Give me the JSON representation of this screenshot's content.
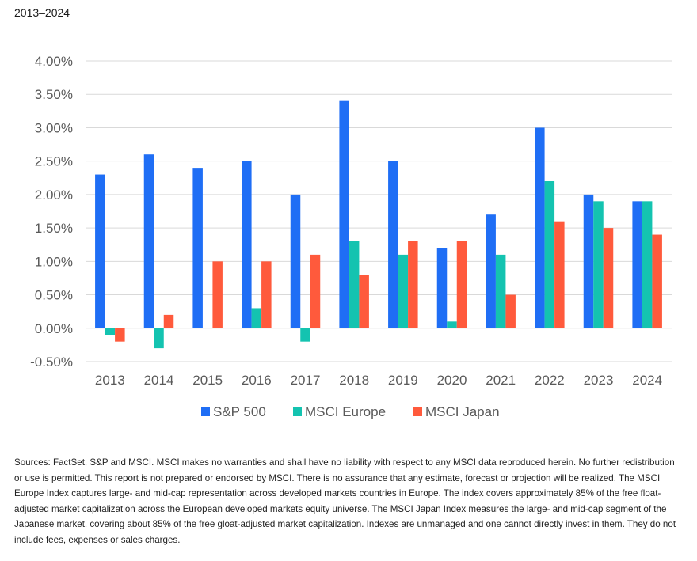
{
  "subtitle": "2013–2024",
  "sources_note": "Sources: FactSet, S&P and MSCI. MSCI makes no warranties and shall have no liability with respect to any MSCI data reproduced herein. No further redistribution or use is permitted. This report is not prepared or endorsed by MSCI. There is no assurance that any estimate, forecast or projection will be realized. The MSCI Europe Index captures large- and mid-cap representation across developed markets countries in Europe. The index covers approximately 85% of the free float-adjusted market capitalization across the European developed markets equity universe. The MSCI Japan Index measures the large- and mid-cap segment of the Japanese market, covering about 85% of the free gloat-adjusted market capitalization. Indexes are unmanaged and one cannot directly invest in them. They do not include fees, expenses or sales charges.",
  "chart_data": {
    "type": "bar",
    "title": "",
    "xlabel": "",
    "ylabel": "",
    "categories": [
      "2013",
      "2014",
      "2015",
      "2016",
      "2017",
      "2018",
      "2019",
      "2020",
      "2021",
      "2022",
      "2023",
      "2024"
    ],
    "series": [
      {
        "name": "S&P 500",
        "color": "#1f6ef5",
        "values": [
          2.3,
          2.6,
          2.4,
          2.5,
          2.0,
          3.4,
          2.5,
          1.2,
          1.7,
          3.0,
          2.0,
          1.9
        ]
      },
      {
        "name": "MSCI Europe",
        "color": "#14c3b0",
        "values": [
          -0.1,
          -0.3,
          0.0,
          0.3,
          -0.2,
          1.3,
          1.1,
          0.1,
          1.1,
          2.2,
          1.9,
          1.9
        ]
      },
      {
        "name": "MSCI Japan",
        "color": "#ff5a3c",
        "values": [
          -0.2,
          0.2,
          1.0,
          1.0,
          1.1,
          0.8,
          1.3,
          1.3,
          0.5,
          1.6,
          1.5,
          1.4
        ]
      }
    ],
    "ylim": [
      -0.5,
      4.0
    ],
    "y_ticks": [
      -0.5,
      0.0,
      0.5,
      1.0,
      1.5,
      2.0,
      2.5,
      3.0,
      3.5,
      4.0
    ],
    "y_tick_labels": [
      "-0.50%",
      "0.00%",
      "0.50%",
      "1.00%",
      "1.50%",
      "2.00%",
      "2.50%",
      "3.00%",
      "3.50%",
      "4.00%"
    ],
    "grid": true,
    "legend_position": "bottom-center"
  }
}
